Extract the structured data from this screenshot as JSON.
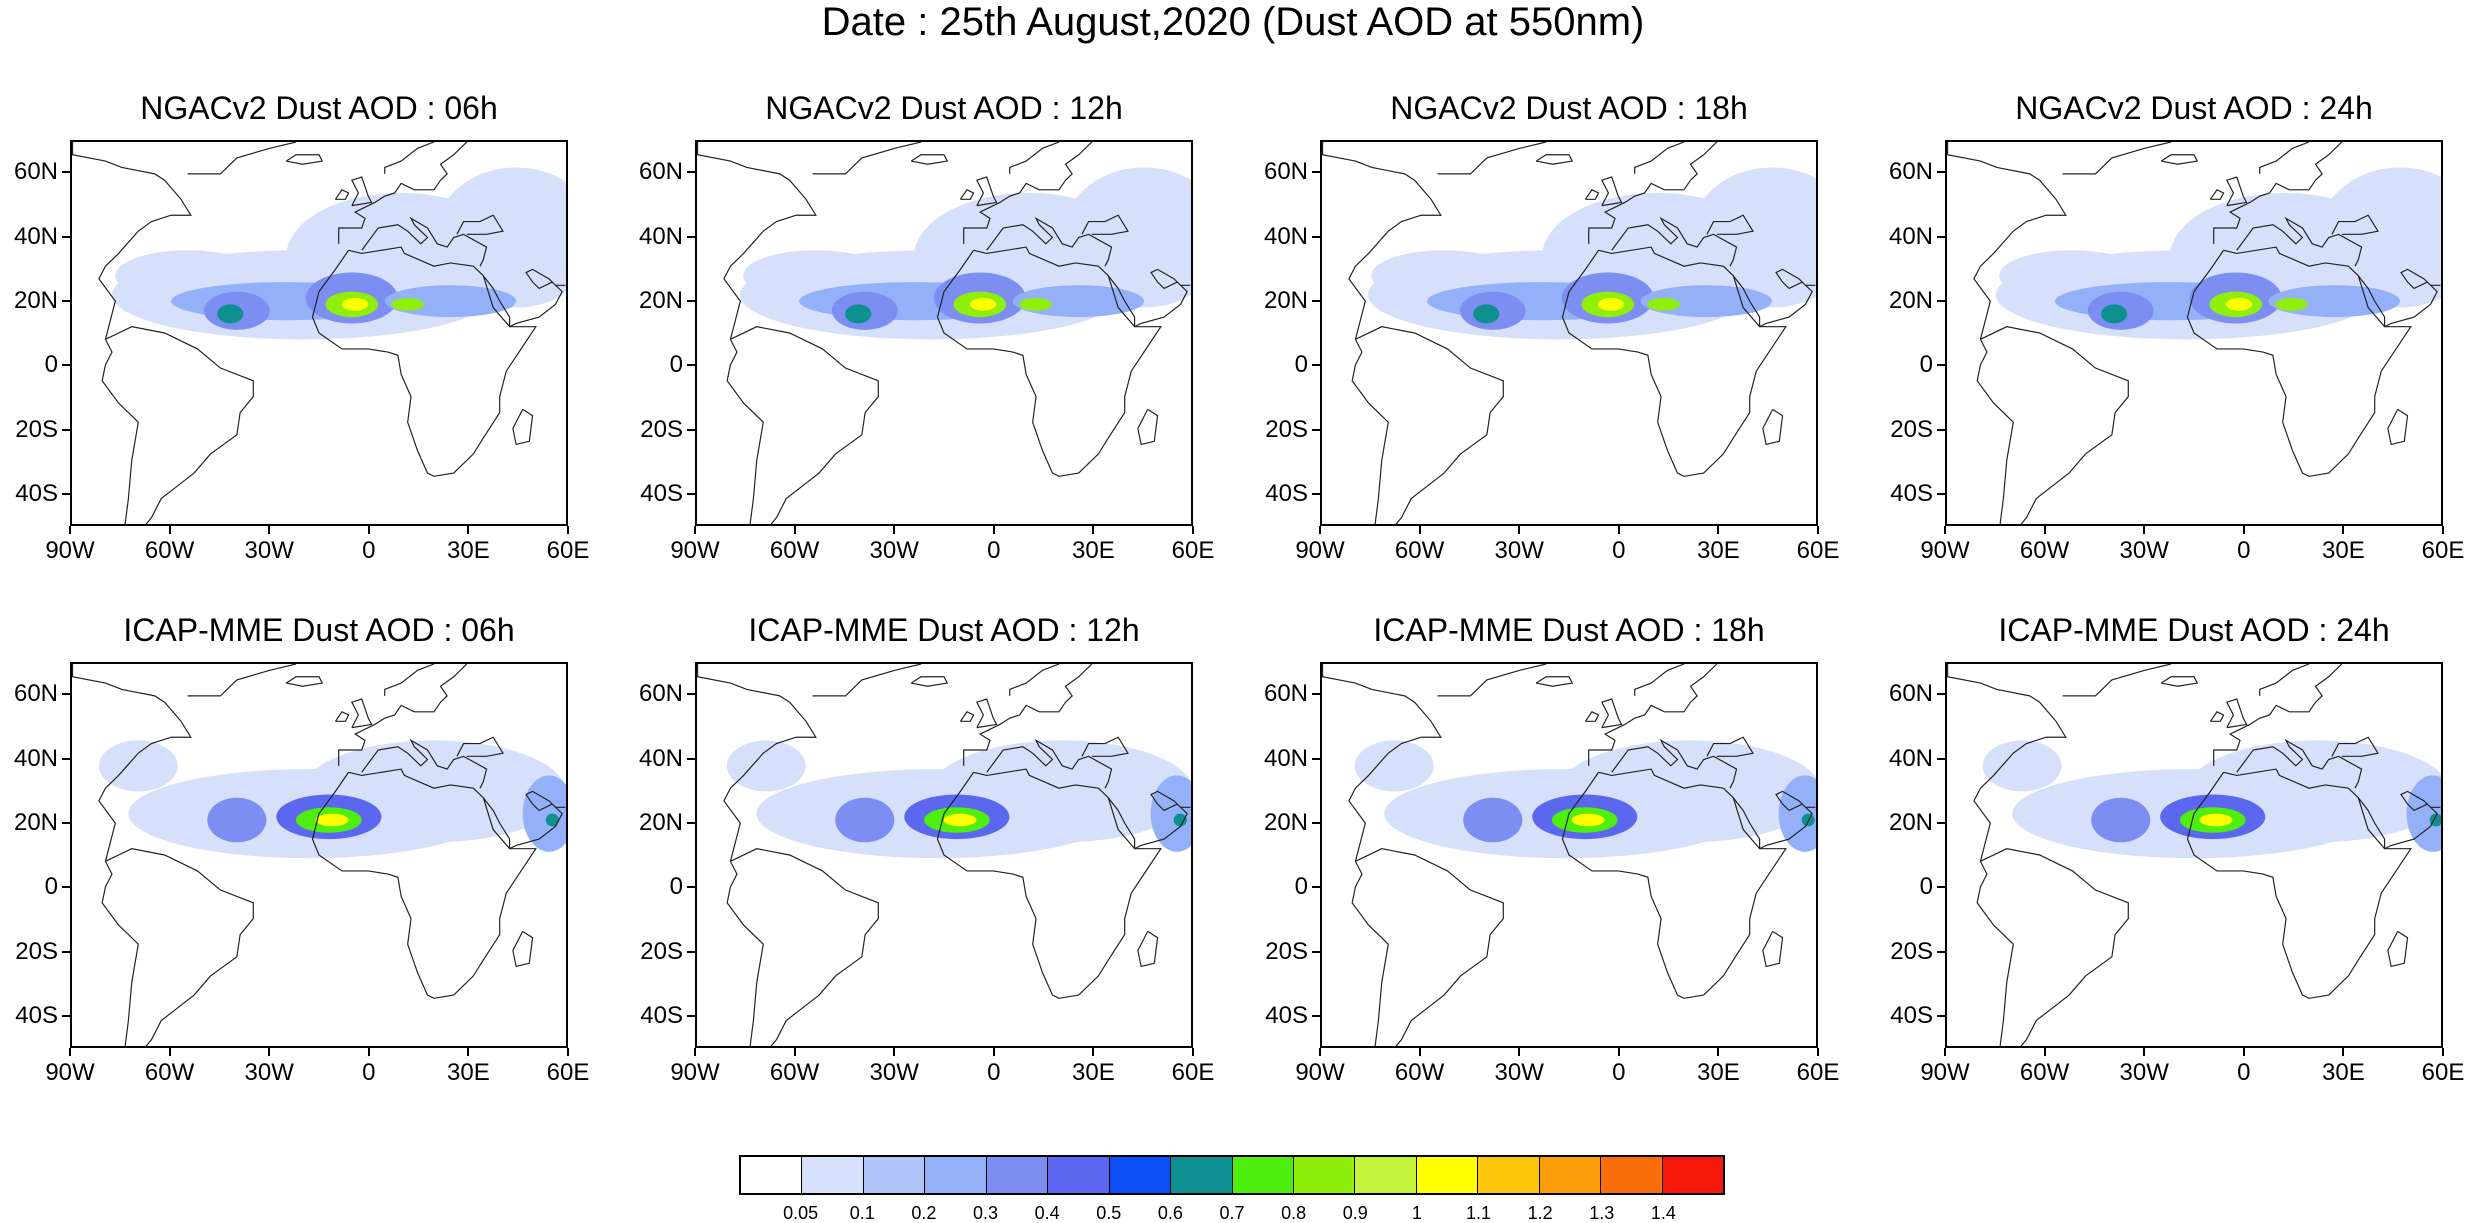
{
  "title": "Date : 25th August,2020 (Dust AOD at 550nm)",
  "panels": [
    {
      "title": "NGACv2 Dust AOD : 06h",
      "model": "ngac",
      "hour": 6
    },
    {
      "title": "NGACv2 Dust AOD : 12h",
      "model": "ngac",
      "hour": 12
    },
    {
      "title": "NGACv2 Dust AOD : 18h",
      "model": "ngac",
      "hour": 18
    },
    {
      "title": "NGACv2 Dust AOD : 24h",
      "model": "ngac",
      "hour": 24
    },
    {
      "title": "ICAP-MME Dust AOD : 06h",
      "model": "icap",
      "hour": 6
    },
    {
      "title": "ICAP-MME Dust AOD : 12h",
      "model": "icap",
      "hour": 12
    },
    {
      "title": "ICAP-MME Dust AOD : 18h",
      "model": "icap",
      "hour": 18
    },
    {
      "title": "ICAP-MME Dust AOD : 24h",
      "model": "icap",
      "hour": 24
    }
  ],
  "axes": {
    "lat_labels": [
      "60N",
      "40N",
      "20N",
      "0",
      "20S",
      "40S"
    ],
    "lat_values": [
      60,
      40,
      20,
      0,
      -20,
      -40
    ],
    "lon_labels": [
      "90W",
      "60W",
      "30W",
      "0",
      "30E",
      "60E"
    ],
    "lon_values": [
      -90,
      -60,
      -30,
      0,
      30,
      60
    ],
    "lon_range": [
      -90,
      60
    ],
    "lat_range": [
      -50,
      70
    ]
  },
  "colorbar": {
    "labels": [
      "0.05",
      "0.1",
      "0.2",
      "0.3",
      "0.4",
      "0.5",
      "0.6",
      "0.7",
      "0.8",
      "0.9",
      "1",
      "1.1",
      "1.2",
      "1.3",
      "1.4"
    ],
    "colors": [
      "#ffffff",
      "#d6e0fb",
      "#b2c5f8",
      "#94b0f8",
      "#7d8ef3",
      "#5b67ee",
      "#0a50f6",
      "#0e9090",
      "#4eef0f",
      "#8fef0a",
      "#c3f33a",
      "#ffff00",
      "#fcc60a",
      "#fb9c0a",
      "#f96e0a",
      "#f7180c"
    ]
  },
  "plumes": {
    "ngac": [
      {
        "lon": -20,
        "lat": 22,
        "rlon": 58,
        "rlat": 14,
        "level": 1
      },
      {
        "lon": 10,
        "lat": 34,
        "rlon": 35,
        "rlat": 20,
        "level": 1
      },
      {
        "lon": 45,
        "lat": 40,
        "rlon": 25,
        "rlat": 22,
        "level": 1
      },
      {
        "lon": -55,
        "lat": 28,
        "rlon": 22,
        "rlat": 8,
        "level": 1
      },
      {
        "lon": -25,
        "lat": 20,
        "rlon": 35,
        "rlat": 6,
        "level": 3
      },
      {
        "lon": -40,
        "lat": 17,
        "rlon": 10,
        "rlat": 6,
        "level": 4
      },
      {
        "lon": -5,
        "lat": 21,
        "rlon": 14,
        "rlat": 8,
        "level": 4
      },
      {
        "lon": 25,
        "lat": 20,
        "rlon": 20,
        "rlat": 5,
        "level": 3
      },
      {
        "lon": -42,
        "lat": 16,
        "rlon": 4,
        "rlat": 3,
        "level": 7
      },
      {
        "lon": -5,
        "lat": 19,
        "rlon": 8,
        "rlat": 4,
        "level": 9
      },
      {
        "lon": 12,
        "lat": 19,
        "rlon": 5,
        "rlat": 2,
        "level": 9
      },
      {
        "lon": -4,
        "lat": 19,
        "rlon": 4,
        "rlat": 2,
        "level": 11
      }
    ],
    "icap": [
      {
        "lon": -18,
        "lat": 23,
        "rlon": 55,
        "rlat": 14,
        "level": 1
      },
      {
        "lon": 20,
        "lat": 30,
        "rlon": 40,
        "rlat": 16,
        "level": 1
      },
      {
        "lon": -70,
        "lat": 38,
        "rlon": 12,
        "rlat": 8,
        "level": 1
      },
      {
        "lon": -40,
        "lat": 21,
        "rlon": 9,
        "rlat": 7,
        "level": 4
      },
      {
        "lon": -12,
        "lat": 22,
        "rlon": 16,
        "rlat": 7,
        "level": 5
      },
      {
        "lon": 55,
        "lat": 23,
        "rlon": 8,
        "rlat": 12,
        "level": 3
      },
      {
        "lon": -12,
        "lat": 21,
        "rlon": 10,
        "rlat": 4,
        "level": 8
      },
      {
        "lon": -11,
        "lat": 21,
        "rlon": 5,
        "rlat": 2,
        "level": 11
      },
      {
        "lon": 56,
        "lat": 21,
        "rlon": 2,
        "rlat": 2,
        "level": 7
      }
    ]
  },
  "coastlines": [
    [
      [
        -80,
        8
      ],
      [
        -77,
        20
      ],
      [
        -82,
        27
      ],
      [
        -80,
        31
      ],
      [
        -76,
        35
      ],
      [
        -70,
        42
      ],
      [
        -66,
        45
      ],
      [
        -60,
        47
      ],
      [
        -54,
        47
      ],
      [
        -57,
        52
      ],
      [
        -62,
        58
      ],
      [
        -65,
        60
      ],
      [
        -75,
        62
      ],
      [
        -80,
        64
      ],
      [
        -90,
        66
      ],
      [
        -90,
        70
      ]
    ],
    [
      [
        -80,
        8
      ],
      [
        -72,
        12
      ],
      [
        -62,
        10
      ],
      [
        -52,
        5
      ],
      [
        -45,
        -1
      ],
      [
        -35,
        -5
      ],
      [
        -35,
        -10
      ],
      [
        -39,
        -15
      ],
      [
        -40,
        -22
      ],
      [
        -48,
        -28
      ],
      [
        -53,
        -34
      ],
      [
        -58,
        -38
      ],
      [
        -63,
        -42
      ],
      [
        -66,
        -48
      ],
      [
        -70,
        -53
      ],
      [
        -74,
        -50
      ],
      [
        -73,
        -42
      ],
      [
        -72,
        -30
      ],
      [
        -70,
        -18
      ],
      [
        -76,
        -12
      ],
      [
        -81,
        -5
      ],
      [
        -80,
        0
      ],
      [
        -78,
        4
      ],
      [
        -80,
        8
      ]
    ],
    [
      [
        -55,
        60
      ],
      [
        -45,
        60
      ],
      [
        -40,
        65
      ],
      [
        -30,
        68
      ],
      [
        -22,
        70
      ]
    ],
    [
      [
        -25,
        64
      ],
      [
        -22,
        66
      ],
      [
        -15,
        66
      ],
      [
        -14,
        64
      ],
      [
        -20,
        63
      ],
      [
        -25,
        64
      ]
    ],
    [
      [
        -6,
        36
      ],
      [
        -10,
        30
      ],
      [
        -15,
        23
      ],
      [
        -17,
        15
      ],
      [
        -15,
        10
      ],
      [
        -8,
        5
      ],
      [
        0,
        5
      ],
      [
        6,
        4
      ],
      [
        9,
        3
      ],
      [
        10,
        -3
      ],
      [
        13,
        -10
      ],
      [
        12,
        -18
      ],
      [
        15,
        -27
      ],
      [
        18,
        -34
      ],
      [
        20,
        -35
      ],
      [
        26,
        -34
      ],
      [
        32,
        -28
      ],
      [
        35,
        -23
      ],
      [
        40,
        -15
      ],
      [
        40,
        -10
      ],
      [
        42,
        -2
      ],
      [
        51,
        12
      ],
      [
        43,
        12
      ],
      [
        38,
        18
      ],
      [
        35,
        28
      ],
      [
        32,
        31
      ],
      [
        25,
        32
      ],
      [
        20,
        31
      ],
      [
        11,
        35
      ],
      [
        10,
        37
      ],
      [
        -2,
        35
      ],
      [
        -6,
        36
      ]
    ],
    [
      [
        -9,
        38
      ],
      [
        -9,
        43
      ],
      [
        -2,
        43
      ],
      [
        -1,
        46
      ],
      [
        -4,
        48
      ],
      [
        2,
        51
      ],
      [
        5,
        53
      ],
      [
        8,
        54
      ],
      [
        10,
        57
      ],
      [
        12,
        56
      ],
      [
        14,
        55
      ],
      [
        20,
        55
      ],
      [
        22,
        58
      ],
      [
        24,
        60
      ],
      [
        22,
        63
      ],
      [
        26,
        66
      ],
      [
        30,
        70
      ]
    ],
    [
      [
        -5,
        50
      ],
      [
        -3,
        54
      ],
      [
        -5,
        58
      ],
      [
        -2,
        59
      ],
      [
        0,
        53
      ],
      [
        1,
        51
      ],
      [
        -5,
        50
      ]
    ],
    [
      [
        -10,
        52
      ],
      [
        -8,
        55
      ],
      [
        -6,
        54
      ],
      [
        -7,
        52
      ],
      [
        -10,
        52
      ]
    ],
    [
      [
        5,
        60
      ],
      [
        5,
        62
      ],
      [
        10,
        64
      ],
      [
        15,
        68
      ],
      [
        20,
        70
      ]
    ],
    [
      [
        -2,
        36
      ],
      [
        3,
        43
      ],
      [
        9,
        44
      ],
      [
        12,
        42
      ],
      [
        16,
        38
      ],
      [
        18,
        40
      ],
      [
        14,
        44
      ],
      [
        13,
        46
      ],
      [
        18,
        43
      ],
      [
        21,
        38
      ],
      [
        24,
        37
      ],
      [
        26,
        40
      ],
      [
        29,
        41
      ],
      [
        36,
        37
      ],
      [
        35,
        33
      ],
      [
        34,
        31
      ]
    ],
    [
      [
        27,
        41
      ],
      [
        29,
        45
      ],
      [
        34,
        45
      ],
      [
        38,
        47
      ],
      [
        41,
        42
      ],
      [
        36,
        41
      ],
      [
        30,
        41
      ]
    ],
    [
      [
        43,
        12
      ],
      [
        45,
        13
      ],
      [
        52,
        15
      ],
      [
        57,
        19
      ],
      [
        59,
        23
      ],
      [
        56,
        26
      ],
      [
        52,
        24
      ],
      [
        50,
        26
      ],
      [
        48,
        29
      ],
      [
        50,
        30
      ],
      [
        55,
        27
      ],
      [
        57,
        25
      ],
      [
        60,
        25
      ]
    ],
    [
      [
        35,
        28
      ],
      [
        38,
        24
      ],
      [
        40,
        20
      ],
      [
        43,
        15
      ],
      [
        43,
        12
      ]
    ],
    [
      [
        47,
        -14
      ],
      [
        50,
        -16
      ],
      [
        49,
        -24
      ],
      [
        45,
        -25
      ],
      [
        44,
        -20
      ],
      [
        47,
        -14
      ]
    ]
  ]
}
